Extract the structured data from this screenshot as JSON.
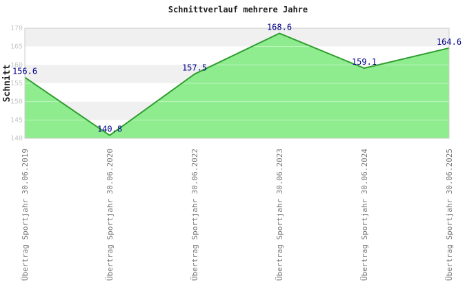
{
  "chart_data": {
    "type": "area",
    "title": "Schnittverlauf mehrere Jahre",
    "ylabel": "Schnitt",
    "xlabel": "",
    "categories": [
      "Übertrag Sportjahr 30.06.2019",
      "Übertrag Sportjahr 30.06.2020",
      "Übertrag Sportjahr 30.06.2022",
      "Übertrag Sportjahr 30.06.2023",
      "Übertrag Sportjahr 30.06.2024",
      "Übertrag Sportjahr 30.06.2025"
    ],
    "values": [
      156.6,
      140.8,
      157.5,
      168.6,
      159.1,
      164.6
    ],
    "value_labels": [
      "156.6",
      "140.8",
      "157.5",
      "168.6",
      "159.1",
      "164.6"
    ],
    "ylim": [
      140,
      170
    ],
    "ytick_step": 5,
    "yticks": [
      "140",
      "145",
      "150",
      "155",
      "160",
      "165",
      "170"
    ],
    "grid": true,
    "legend": "none",
    "colors": {
      "area_fill": "#85ec85",
      "line": "#2f9e2f",
      "value_label": "#00008b",
      "band": "#f0f0f0",
      "plot_border": "#cccccc",
      "ytick_text": "#c6c6c6",
      "xtick_text": "#777777",
      "title_text": "#222222",
      "ylabel_text": "#222222"
    }
  }
}
